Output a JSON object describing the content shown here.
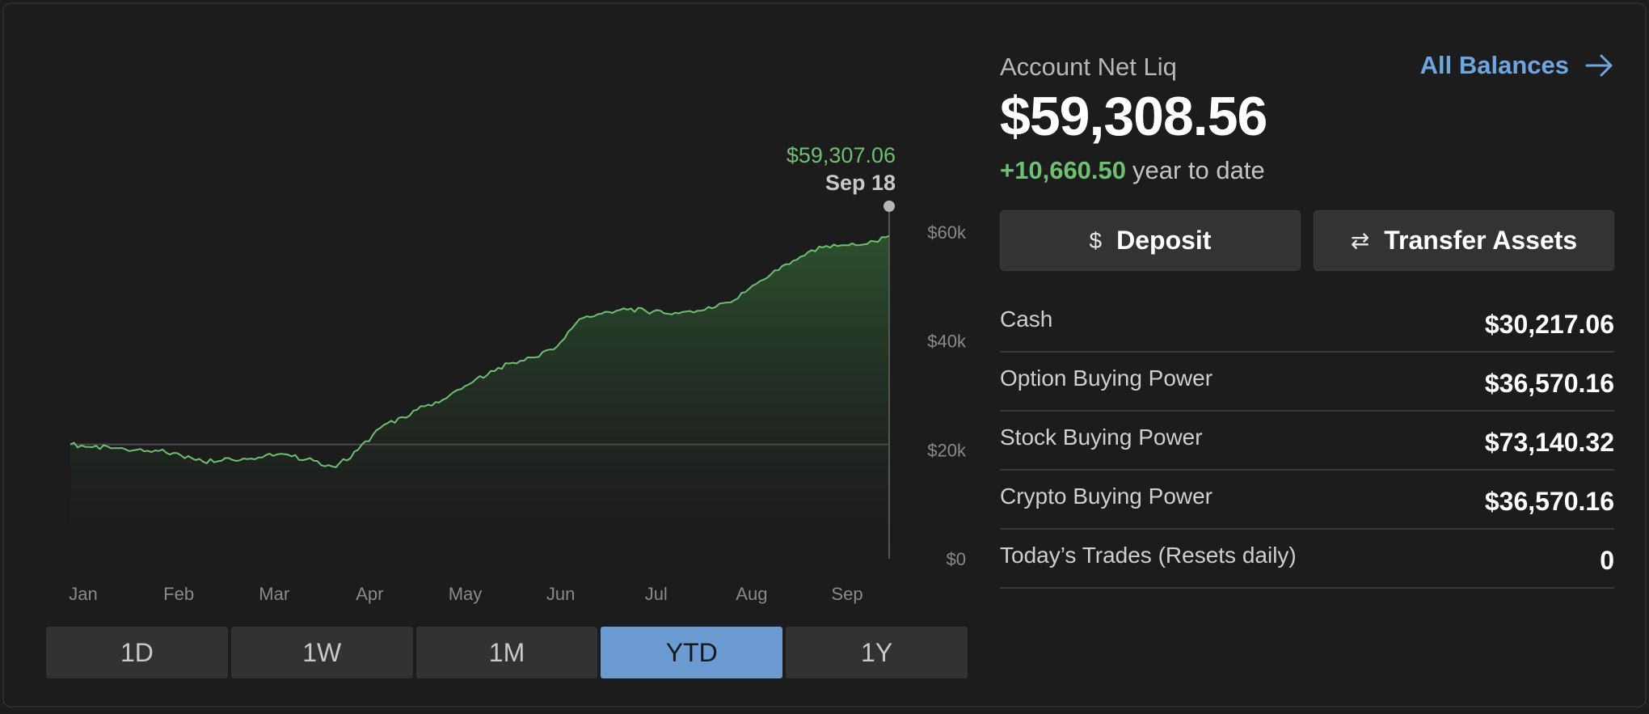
{
  "chart": {
    "tooltip_value": "$59,307.06",
    "tooltip_date": "Sep 18",
    "y_ticks": [
      "$60k",
      "$40k",
      "$20k",
      "$0"
    ],
    "x_labels": [
      "Jan",
      "Feb",
      "Mar",
      "Apr",
      "May",
      "Jun",
      "Jul",
      "Aug",
      "Sep"
    ],
    "colors": {
      "gain": "#6fbf73",
      "loss": "#e06666",
      "accent": "#6b9bd1"
    }
  },
  "chart_data": {
    "type": "area",
    "title": "",
    "xlabel": "",
    "ylabel": "",
    "ylim": [
      0,
      60000
    ],
    "baseline": 21000,
    "x": [
      "Jan 2",
      "Jan 9",
      "Jan 16",
      "Jan 23",
      "Jan 30",
      "Feb 6",
      "Feb 13",
      "Feb 20",
      "Feb 27",
      "Mar 6",
      "Mar 13",
      "Mar 20",
      "Mar 27",
      "Apr 3",
      "Apr 10",
      "Apr 17",
      "Apr 24",
      "May 1",
      "May 8",
      "May 15",
      "May 22",
      "May 29",
      "Jun 5",
      "Jun 12",
      "Jun 19",
      "Jun 26",
      "Jul 3",
      "Jul 10",
      "Jul 17",
      "Jul 24",
      "Jul 31",
      "Aug 7",
      "Aug 14",
      "Aug 21",
      "Aug 28",
      "Sep 4",
      "Sep 11",
      "Sep 18"
    ],
    "series": [
      {
        "values": [
          21000,
          20500,
          20300,
          20000,
          19800,
          19000,
          17800,
          18500,
          18300,
          19300,
          18800,
          18000,
          16800,
          20000,
          24000,
          26000,
          28000,
          29500,
          32000,
          34500,
          36000,
          37000,
          39000,
          44000,
          45000,
          46000,
          45500,
          45000,
          45500,
          46000,
          47500,
          50500,
          53000,
          55500,
          57200,
          57600,
          57800,
          59307.06
        ]
      }
    ]
  },
  "range_buttons": [
    {
      "label": "1D"
    },
    {
      "label": "1W"
    },
    {
      "label": "1M"
    },
    {
      "label": "YTD",
      "active": true
    },
    {
      "label": "1Y"
    }
  ],
  "summary": {
    "net_liq_label": "Account Net Liq",
    "all_balances_label": "All Balances",
    "net_liq_value": "$59,308.56",
    "ytd_change": "+10,660.50",
    "ytd_text": "year to date",
    "deposit_label": "Deposit",
    "deposit_icon": "$",
    "transfer_label": "Transfer Assets",
    "transfer_icon": "⇄"
  },
  "balances": [
    {
      "label": "Cash",
      "value": "$30,217.06"
    },
    {
      "label": "Option Buying Power",
      "value": "$36,570.16"
    },
    {
      "label": "Stock Buying Power",
      "value": "$73,140.32"
    },
    {
      "label": "Crypto Buying Power",
      "value": "$36,570.16"
    },
    {
      "label": "Today’s Trades (Resets daily)",
      "value": "0"
    }
  ]
}
